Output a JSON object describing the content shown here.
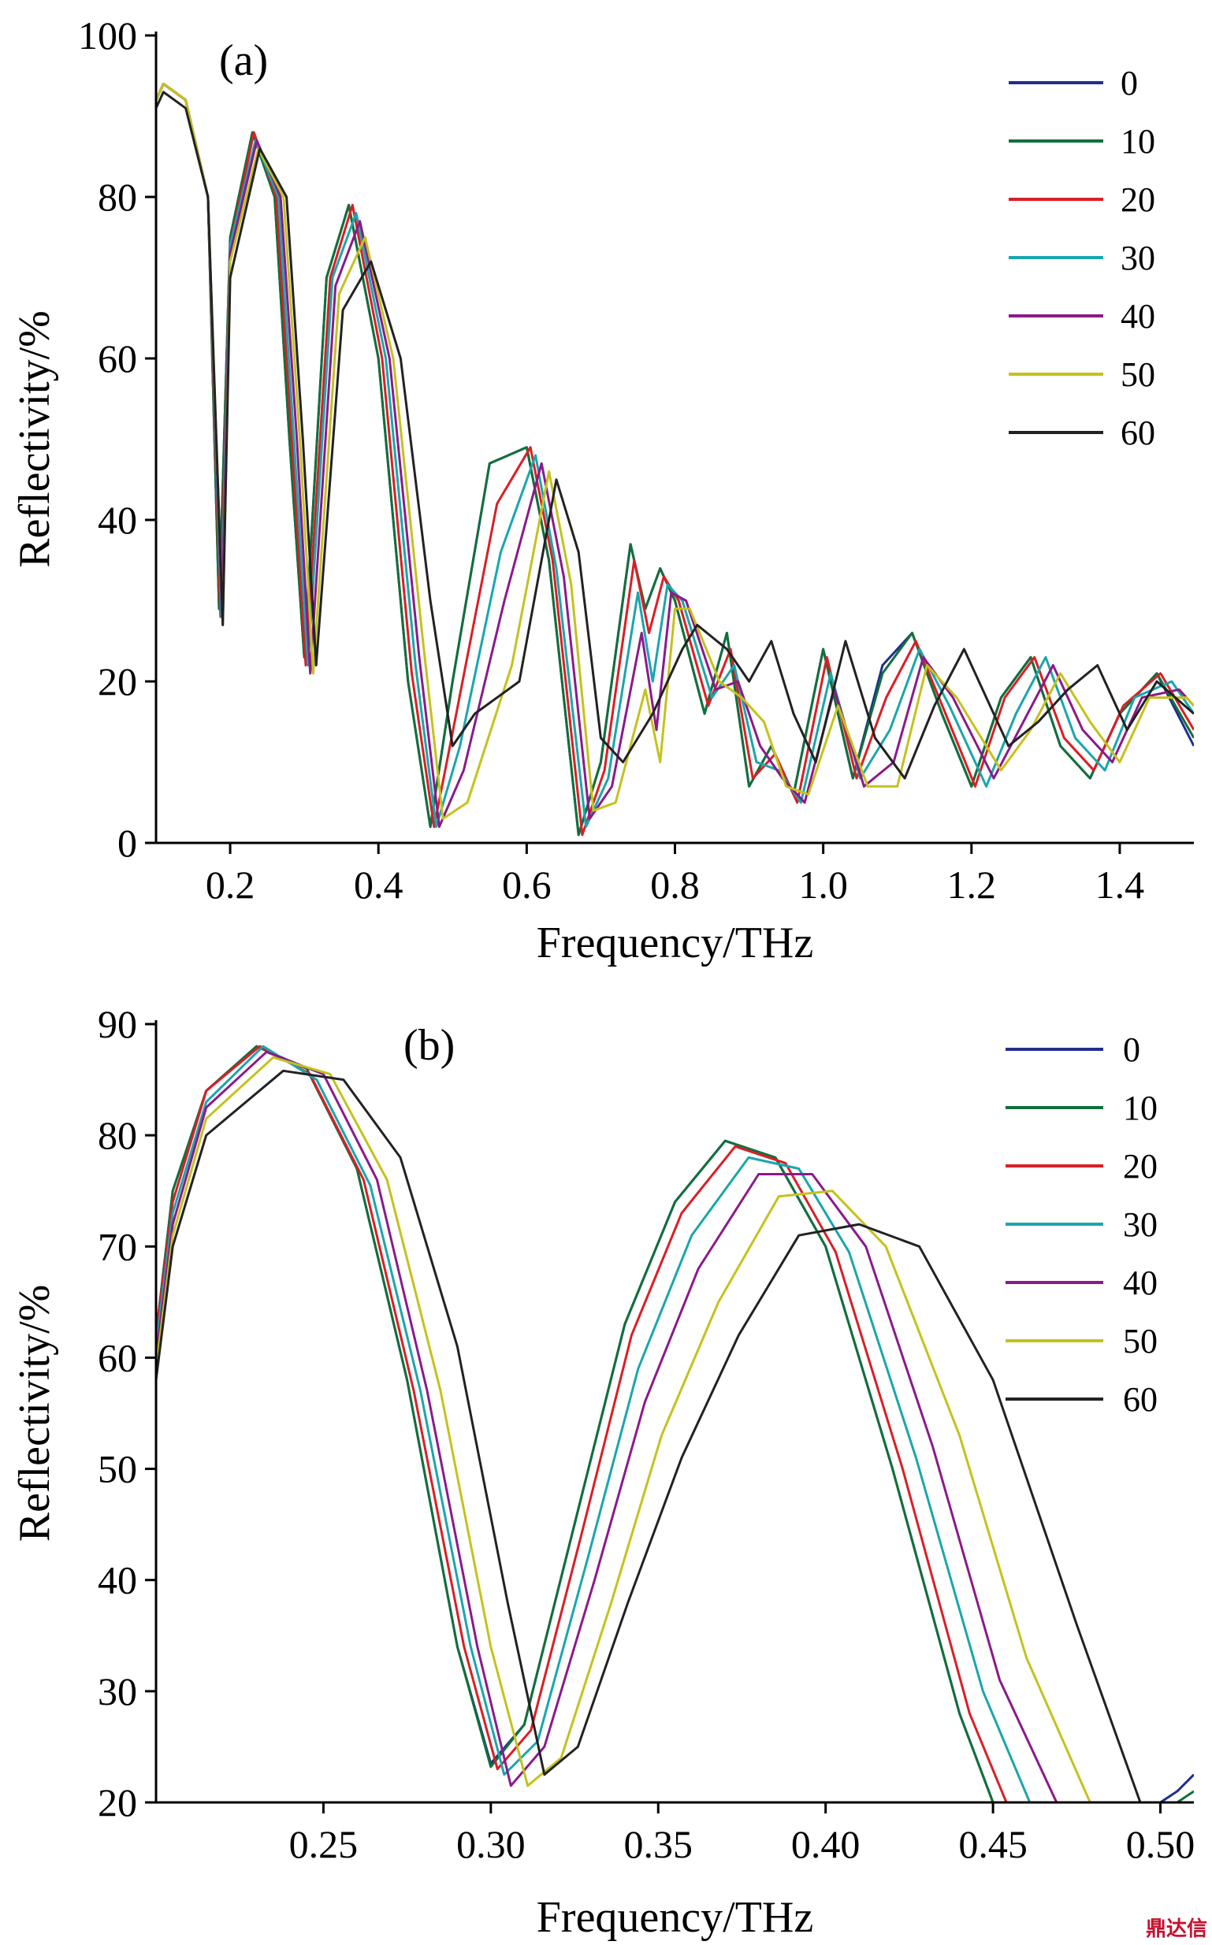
{
  "watermark": "鼎达信",
  "chart_data": [
    {
      "type": "line",
      "panel_label": "(a)",
      "xlabel": "Frequency/THz",
      "ylabel": "Reflectivity/%",
      "xlim": [
        0.1,
        1.5
      ],
      "ylim": [
        0,
        100
      ],
      "xticks": [
        0.2,
        0.4,
        0.6,
        0.8,
        1.0,
        1.2,
        1.4
      ],
      "xtick_labels": [
        "0.2",
        "0.4",
        "0.6",
        "0.8",
        "1.0",
        "1.2",
        "1.4"
      ],
      "yticks": [
        0,
        20,
        40,
        60,
        80,
        100
      ],
      "ytick_labels": [
        "0",
        "20",
        "40",
        "60",
        "80",
        "100"
      ],
      "legend_position": "top-right",
      "series": [
        {
          "name": "0",
          "color": "#1f2f8f",
          "x": [
            0.1,
            0.11,
            0.14,
            0.17,
            0.185,
            0.2,
            0.23,
            0.26,
            0.28,
            0.3,
            0.33,
            0.36,
            0.4,
            0.44,
            0.47,
            0.5,
            0.55,
            0.6,
            0.63,
            0.67,
            0.7,
            0.74,
            0.76,
            0.78,
            0.8,
            0.84,
            0.87,
            0.9,
            0.93,
            0.96,
            1.0,
            1.04,
            1.08,
            1.12,
            1.16,
            1.2,
            1.24,
            1.28,
            1.32,
            1.36,
            1.4,
            1.45,
            1.5
          ],
          "y": [
            92,
            94,
            92,
            80,
            29,
            75,
            88,
            80,
            50,
            23,
            70,
            79,
            60,
            20,
            2,
            20,
            47,
            49,
            35,
            1,
            10,
            37,
            29,
            34,
            30,
            16,
            26,
            7,
            12,
            6,
            24,
            8,
            22,
            26,
            16,
            7,
            18,
            23,
            12,
            8,
            16,
            21,
            12
          ]
        },
        {
          "name": "10",
          "color": "#11703a",
          "x": [
            0.1,
            0.11,
            0.14,
            0.17,
            0.185,
            0.2,
            0.23,
            0.26,
            0.28,
            0.3,
            0.33,
            0.36,
            0.4,
            0.44,
            0.47,
            0.5,
            0.55,
            0.6,
            0.63,
            0.67,
            0.7,
            0.74,
            0.76,
            0.78,
            0.8,
            0.84,
            0.87,
            0.9,
            0.93,
            0.96,
            1.0,
            1.04,
            1.08,
            1.12,
            1.16,
            1.2,
            1.24,
            1.28,
            1.32,
            1.36,
            1.4,
            1.45,
            1.5
          ],
          "y": [
            92,
            94,
            92,
            80,
            29,
            75,
            88,
            80,
            50,
            23,
            70,
            79,
            60,
            20,
            2,
            20,
            47,
            49,
            35,
            1,
            10,
            37,
            29,
            34,
            30,
            16,
            26,
            7,
            12,
            6,
            24,
            8,
            21,
            26,
            16,
            7,
            18,
            23,
            12,
            8,
            16,
            21,
            13
          ]
        },
        {
          "name": "20",
          "color": "#d91f26",
          "x": [
            0.1,
            0.11,
            0.14,
            0.17,
            0.187,
            0.2,
            0.232,
            0.262,
            0.283,
            0.302,
            0.335,
            0.365,
            0.405,
            0.445,
            0.475,
            0.505,
            0.56,
            0.605,
            0.635,
            0.675,
            0.705,
            0.745,
            0.765,
            0.785,
            0.805,
            0.845,
            0.875,
            0.905,
            0.935,
            0.965,
            1.005,
            1.045,
            1.085,
            1.125,
            1.165,
            1.205,
            1.245,
            1.285,
            1.325,
            1.365,
            1.405,
            1.455,
            1.5
          ],
          "y": [
            92,
            94,
            92,
            80,
            28,
            74,
            88,
            80,
            50,
            22,
            70,
            79,
            60,
            21,
            2,
            16,
            42,
            49,
            35,
            1,
            9,
            35,
            26,
            33,
            30,
            17,
            24,
            8,
            11,
            5,
            23,
            8,
            18,
            25,
            16,
            7,
            18,
            23,
            13,
            9,
            17,
            21,
            14
          ]
        },
        {
          "name": "30",
          "color": "#1aa6ad",
          "x": [
            0.1,
            0.11,
            0.14,
            0.17,
            0.188,
            0.2,
            0.234,
            0.265,
            0.286,
            0.305,
            0.338,
            0.37,
            0.41,
            0.45,
            0.478,
            0.51,
            0.565,
            0.612,
            0.64,
            0.68,
            0.71,
            0.75,
            0.77,
            0.79,
            0.81,
            0.85,
            0.88,
            0.91,
            0.94,
            0.97,
            1.01,
            1.05,
            1.09,
            1.13,
            1.17,
            1.22,
            1.26,
            1.3,
            1.34,
            1.38,
            1.42,
            1.47,
            1.5
          ],
          "y": [
            92,
            94,
            92,
            80,
            28,
            74,
            87,
            80,
            50,
            22,
            70,
            78,
            60,
            22,
            2,
            12,
            36,
            48,
            34,
            2,
            8,
            31,
            20,
            32,
            30,
            18,
            22,
            10,
            9,
            5,
            21,
            8,
            14,
            24,
            17,
            7,
            16,
            23,
            13,
            9,
            18,
            20,
            16
          ]
        },
        {
          "name": "40",
          "color": "#8b1a8b",
          "x": [
            0.1,
            0.11,
            0.14,
            0.17,
            0.189,
            0.2,
            0.236,
            0.268,
            0.29,
            0.308,
            0.342,
            0.375,
            0.415,
            0.455,
            0.482,
            0.515,
            0.57,
            0.62,
            0.65,
            0.685,
            0.715,
            0.755,
            0.775,
            0.795,
            0.815,
            0.855,
            0.885,
            0.915,
            0.945,
            0.975,
            1.015,
            1.055,
            1.095,
            1.135,
            1.175,
            1.23,
            1.27,
            1.31,
            1.35,
            1.39,
            1.43,
            1.48,
            1.5
          ],
          "y": [
            92,
            94,
            92,
            80,
            28,
            73,
            87,
            80,
            50,
            21,
            69,
            77,
            60,
            23,
            2,
            9,
            30,
            47,
            33,
            3,
            7,
            26,
            14,
            31,
            30,
            19,
            20,
            12,
            8,
            5,
            19,
            7,
            10,
            23,
            18,
            8,
            15,
            22,
            14,
            10,
            18,
            19,
            17
          ]
        },
        {
          "name": "50",
          "color": "#c4c21d",
          "x": [
            0.1,
            0.11,
            0.14,
            0.17,
            0.19,
            0.2,
            0.238,
            0.272,
            0.294,
            0.312,
            0.347,
            0.382,
            0.42,
            0.46,
            0.487,
            0.52,
            0.58,
            0.63,
            0.66,
            0.69,
            0.72,
            0.76,
            0.78,
            0.8,
            0.82,
            0.86,
            0.89,
            0.92,
            0.95,
            0.98,
            1.02,
            1.06,
            1.1,
            1.14,
            1.18,
            1.24,
            1.28,
            1.32,
            1.36,
            1.4,
            1.44,
            1.49,
            1.5
          ],
          "y": [
            92,
            94,
            92,
            80,
            27,
            72,
            86,
            80,
            50,
            21,
            68,
            75,
            60,
            25,
            3,
            5,
            22,
            46,
            32,
            4,
            5,
            19,
            10,
            29,
            29,
            20,
            18,
            15,
            7,
            6,
            17,
            7,
            7,
            22,
            18,
            9,
            14,
            21,
            15,
            10,
            18,
            18,
            17
          ]
        },
        {
          "name": "60",
          "color": "#222222",
          "x": [
            0.1,
            0.11,
            0.14,
            0.17,
            0.19,
            0.2,
            0.24,
            0.276,
            0.298,
            0.316,
            0.352,
            0.39,
            0.43,
            0.47,
            0.5,
            0.53,
            0.59,
            0.64,
            0.67,
            0.7,
            0.73,
            0.77,
            0.79,
            0.81,
            0.83,
            0.87,
            0.9,
            0.93,
            0.96,
            0.99,
            1.03,
            1.07,
            1.11,
            1.15,
            1.19,
            1.25,
            1.29,
            1.33,
            1.37,
            1.41,
            1.45,
            1.5
          ],
          "y": [
            91,
            93,
            91,
            80,
            27,
            70,
            86,
            80,
            50,
            22,
            66,
            72,
            60,
            30,
            12,
            16,
            20,
            45,
            36,
            13,
            10,
            16,
            20,
            24,
            27,
            24,
            20,
            25,
            16,
            10,
            25,
            13,
            8,
            17,
            24,
            12,
            15,
            19,
            22,
            14,
            20,
            16
          ]
        }
      ]
    },
    {
      "type": "line",
      "panel_label": "(b)",
      "xlabel": "Frequency/THz",
      "ylabel": "Reflectivity/%",
      "xlim": [
        0.2,
        0.51
      ],
      "ylim": [
        20,
        90
      ],
      "xticks": [
        0.25,
        0.3,
        0.35,
        0.4,
        0.45,
        0.5
      ],
      "xtick_labels": [
        "0.25",
        "0.30",
        "0.35",
        "0.40",
        "0.45",
        "0.50"
      ],
      "yticks": [
        20,
        30,
        40,
        50,
        60,
        70,
        80,
        90
      ],
      "ytick_labels": [
        "20",
        "30",
        "40",
        "50",
        "60",
        "70",
        "80",
        "90"
      ],
      "legend_position": "top-right",
      "series": [
        {
          "name": "0",
          "color": "#1f2f8f",
          "x": [
            0.2,
            0.205,
            0.215,
            0.23,
            0.245,
            0.26,
            0.275,
            0.29,
            0.3,
            0.31,
            0.325,
            0.34,
            0.355,
            0.37,
            0.385,
            0.4,
            0.42,
            0.44,
            0.45,
            0.5,
            0.505,
            0.51
          ],
          "y": [
            62,
            75,
            84,
            88,
            86,
            77,
            58,
            34,
            23.5,
            27,
            45,
            63,
            74,
            79.5,
            78,
            70,
            50,
            28,
            20,
            20,
            21,
            22.5
          ]
        },
        {
          "name": "10",
          "color": "#11703a",
          "x": [
            0.2,
            0.205,
            0.215,
            0.23,
            0.245,
            0.26,
            0.275,
            0.29,
            0.3,
            0.31,
            0.325,
            0.34,
            0.355,
            0.37,
            0.385,
            0.4,
            0.42,
            0.44,
            0.45,
            0.505,
            0.51
          ],
          "y": [
            62,
            75,
            84,
            88,
            86,
            77,
            58,
            34,
            23.2,
            27,
            45,
            63,
            74,
            79.5,
            78,
            70,
            50,
            28,
            20,
            20,
            21
          ]
        },
        {
          "name": "20",
          "color": "#d91f26",
          "x": [
            0.2,
            0.205,
            0.215,
            0.231,
            0.246,
            0.262,
            0.277,
            0.292,
            0.302,
            0.312,
            0.327,
            0.342,
            0.357,
            0.373,
            0.388,
            0.403,
            0.423,
            0.443,
            0.454
          ],
          "y": [
            62,
            74,
            84,
            88,
            85.5,
            76,
            57,
            34,
            23,
            26.5,
            44,
            62,
            73,
            79,
            77.5,
            69.5,
            50,
            28,
            20
          ]
        },
        {
          "name": "30",
          "color": "#1aa6ad",
          "x": [
            0.2,
            0.205,
            0.215,
            0.232,
            0.248,
            0.264,
            0.279,
            0.294,
            0.304,
            0.314,
            0.329,
            0.344,
            0.36,
            0.377,
            0.392,
            0.407,
            0.427,
            0.447,
            0.461
          ],
          "y": [
            61,
            73,
            83,
            88,
            85,
            75.5,
            57,
            34,
            22.5,
            25.5,
            42,
            59,
            71,
            78,
            77,
            69.5,
            51,
            30,
            20
          ]
        },
        {
          "name": "40",
          "color": "#8b1a8b",
          "x": [
            0.2,
            0.205,
            0.215,
            0.233,
            0.25,
            0.266,
            0.281,
            0.296,
            0.306,
            0.316,
            0.331,
            0.346,
            0.362,
            0.38,
            0.396,
            0.412,
            0.432,
            0.452,
            0.469
          ],
          "y": [
            60,
            72,
            82.5,
            87.5,
            85.5,
            76,
            57,
            34,
            21.5,
            25,
            40,
            56,
            68,
            76.5,
            76.5,
            70,
            52,
            31,
            20
          ]
        },
        {
          "name": "50",
          "color": "#c4c21d",
          "x": [
            0.2,
            0.205,
            0.215,
            0.235,
            0.252,
            0.269,
            0.285,
            0.3,
            0.311,
            0.321,
            0.336,
            0.351,
            0.368,
            0.386,
            0.402,
            0.418,
            0.44,
            0.46,
            0.479
          ],
          "y": [
            59,
            71,
            81.5,
            87,
            85.5,
            76,
            57,
            34,
            21.5,
            24,
            38,
            53,
            65,
            74.5,
            75,
            70,
            53,
            33,
            20
          ]
        },
        {
          "name": "60",
          "color": "#222222",
          "x": [
            0.2,
            0.205,
            0.215,
            0.238,
            0.256,
            0.273,
            0.29,
            0.305,
            0.316,
            0.326,
            0.341,
            0.357,
            0.374,
            0.392,
            0.41,
            0.428,
            0.45,
            0.475,
            0.494
          ],
          "y": [
            58,
            70,
            80,
            85.8,
            85,
            78,
            61,
            38,
            22.5,
            25,
            38,
            51,
            62,
            71,
            72,
            70,
            58,
            36,
            20
          ]
        }
      ]
    }
  ]
}
